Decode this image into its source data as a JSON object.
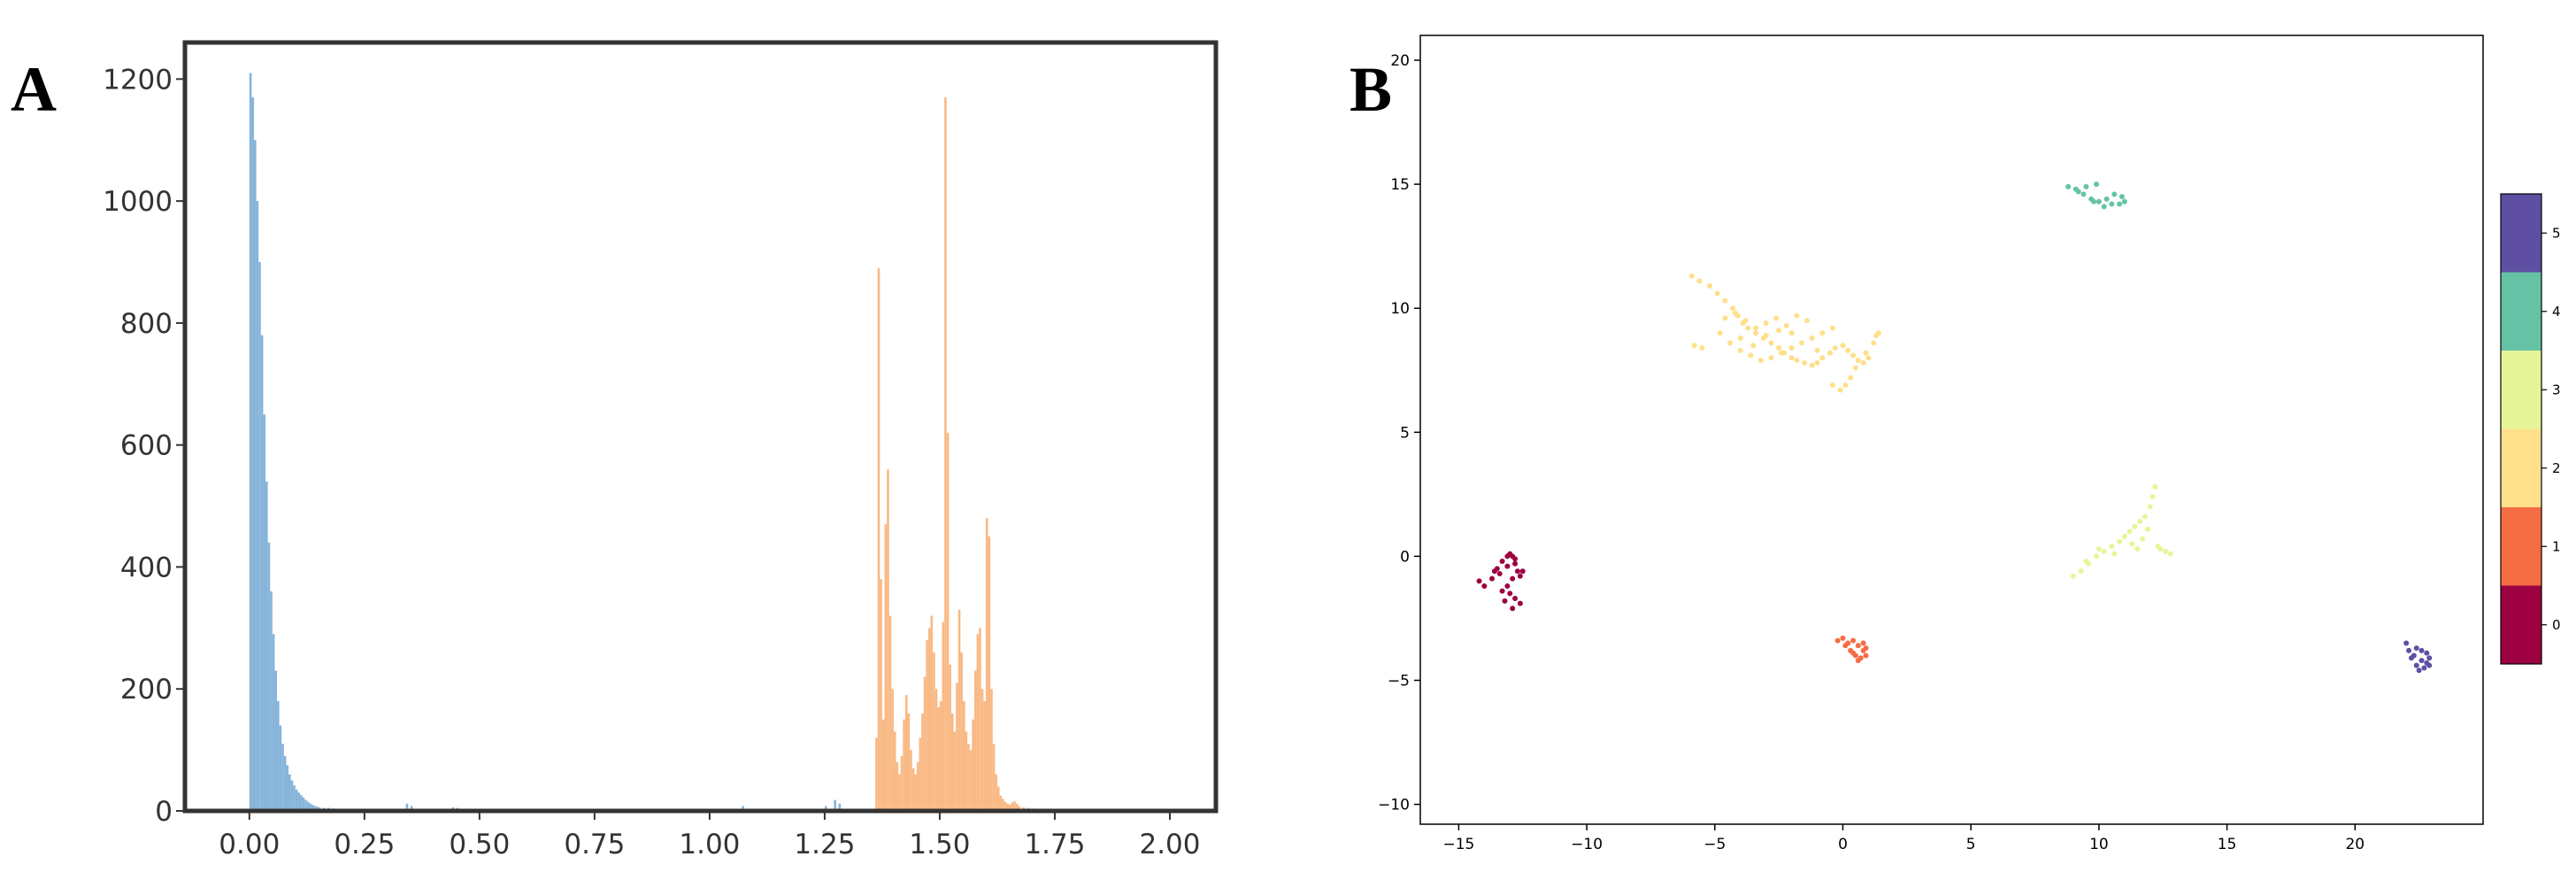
{
  "panel_labels": {
    "a": "A",
    "b": "B"
  },
  "chart_data": [
    {
      "id": "A",
      "type": "bar",
      "xlim": [
        -0.14,
        2.1
      ],
      "ylim": [
        0,
        1260
      ],
      "xticks": [
        0.0,
        0.25,
        0.5,
        0.75,
        1.0,
        1.25,
        1.5,
        1.75,
        2.0
      ],
      "xtick_labels": [
        "0.00",
        "0.25",
        "0.50",
        "0.75",
        "1.00",
        "1.25",
        "1.50",
        "1.75",
        "2.00"
      ],
      "yticks": [
        0,
        200,
        400,
        600,
        800,
        1000,
        1200
      ],
      "ytick_labels": [
        "0",
        "200",
        "400",
        "600",
        "800",
        "1000",
        "1200"
      ],
      "grid": false,
      "series": [
        {
          "color": "#7fb0d8",
          "bin_width": 0.005,
          "x": [
            0.0,
            0.005,
            0.01,
            0.015,
            0.02,
            0.025,
            0.03,
            0.035,
            0.04,
            0.045,
            0.05,
            0.055,
            0.06,
            0.065,
            0.07,
            0.075,
            0.08,
            0.085,
            0.09,
            0.095,
            0.1,
            0.105,
            0.11,
            0.115,
            0.12,
            0.125,
            0.13,
            0.135,
            0.14,
            0.145,
            0.15,
            0.16,
            0.17,
            0.18,
            0.2,
            0.34,
            0.35,
            0.44,
            0.45,
            0.55,
            0.65,
            1.07,
            1.25,
            1.27,
            1.28
          ],
          "values": [
            1210,
            1170,
            1100,
            1000,
            900,
            780,
            650,
            540,
            440,
            360,
            290,
            230,
            180,
            140,
            110,
            90,
            75,
            60,
            50,
            42,
            35,
            30,
            26,
            22,
            18,
            15,
            12,
            10,
            8,
            7,
            6,
            5,
            5,
            4,
            3,
            12,
            8,
            6,
            5,
            3,
            3,
            8,
            8,
            18,
            12
          ]
        },
        {
          "color": "#f9b57e",
          "bin_width": 0.005,
          "x": [
            1.36,
            1.365,
            1.37,
            1.375,
            1.38,
            1.385,
            1.39,
            1.395,
            1.4,
            1.405,
            1.41,
            1.415,
            1.42,
            1.425,
            1.43,
            1.435,
            1.44,
            1.445,
            1.45,
            1.455,
            1.46,
            1.465,
            1.47,
            1.475,
            1.48,
            1.485,
            1.49,
            1.495,
            1.5,
            1.505,
            1.51,
            1.515,
            1.52,
            1.525,
            1.53,
            1.535,
            1.54,
            1.545,
            1.55,
            1.555,
            1.56,
            1.565,
            1.57,
            1.575,
            1.58,
            1.585,
            1.59,
            1.595,
            1.6,
            1.605,
            1.61,
            1.615,
            1.62,
            1.625,
            1.63,
            1.635,
            1.64,
            1.645,
            1.65,
            1.655,
            1.66,
            1.665,
            1.67,
            1.68,
            1.69,
            1.7,
            1.71,
            1.72,
            1.73,
            1.74,
            1.75
          ],
          "values": [
            120,
            890,
            380,
            150,
            470,
            560,
            320,
            200,
            130,
            80,
            60,
            90,
            150,
            190,
            160,
            100,
            70,
            60,
            80,
            120,
            160,
            220,
            280,
            300,
            320,
            260,
            200,
            170,
            180,
            310,
            1170,
            620,
            240,
            160,
            130,
            210,
            330,
            260,
            180,
            130,
            110,
            100,
            150,
            230,
            290,
            300,
            200,
            180,
            480,
            450,
            200,
            110,
            60,
            40,
            25,
            20,
            15,
            12,
            10,
            14,
            16,
            12,
            8,
            6,
            5,
            4,
            3,
            3,
            2,
            2,
            2
          ]
        }
      ]
    },
    {
      "id": "B",
      "type": "scatter",
      "xlim": [
        -16.5,
        25.0
      ],
      "ylim": [
        -10.8,
        21.0
      ],
      "xticks": [
        -15,
        -10,
        -5,
        0,
        5,
        10,
        15,
        20
      ],
      "xtick_labels": [
        "−15",
        "−10",
        "−5",
        "0",
        "5",
        "10",
        "15",
        "20"
      ],
      "yticks": [
        -10,
        -5,
        0,
        5,
        10,
        15,
        20
      ],
      "ytick_labels": [
        "−10",
        "−5",
        "0",
        "5",
        "10",
        "15",
        "20"
      ],
      "grid": false,
      "colorbar": {
        "labels": [
          "0",
          "1",
          "2",
          "3",
          "4",
          "5"
        ],
        "colors": [
          "#9e0142",
          "#f46d43",
          "#fee08b",
          "#e6f598",
          "#66c2a5",
          "#5e4fa2"
        ]
      },
      "series": [
        {
          "label": "0",
          "color": "#9e0142",
          "x": [
            -14.2,
            -14.0,
            -13.7,
            -13.5,
            -13.3,
            -13.1,
            -12.9,
            -12.8,
            -12.7,
            -12.9,
            -13.1,
            -13.0,
            -12.8,
            -12.6,
            -12.9,
            -13.2,
            -13.4,
            -13.1,
            -13.0,
            -12.8,
            -12.6,
            -12.5,
            -13.3,
            -13.6
          ],
          "y": [
            -1.0,
            -1.2,
            -0.9,
            -0.5,
            -0.2,
            0.0,
            0.0,
            -0.3,
            -0.6,
            -0.9,
            -1.2,
            -1.5,
            -1.7,
            -1.9,
            -2.1,
            -1.8,
            -0.7,
            -0.4,
            0.1,
            -0.1,
            -0.8,
            -0.6,
            -1.4,
            -0.6
          ]
        },
        {
          "label": "1",
          "color": "#f46d43",
          "x": [
            -0.2,
            0.0,
            0.2,
            0.4,
            0.6,
            0.8,
            0.9,
            0.7,
            0.5,
            0.3,
            0.1,
            0.8,
            0.9,
            0.6,
            0.4
          ],
          "y": [
            -3.4,
            -3.3,
            -3.5,
            -3.4,
            -3.6,
            -3.8,
            -4.0,
            -4.1,
            -4.0,
            -3.8,
            -3.6,
            -3.5,
            -3.7,
            -4.2,
            -3.9
          ]
        },
        {
          "label": "2",
          "color": "#fee08b",
          "x": [
            -5.9,
            -5.6,
            -5.2,
            -4.9,
            -4.6,
            -4.3,
            -4.1,
            -3.9,
            -3.7,
            -3.4,
            -3.1,
            -2.8,
            -2.5,
            -2.3,
            -2.0,
            -1.8,
            -1.5,
            -1.2,
            -1.0,
            -0.8,
            -0.5,
            -0.3,
            0.0,
            0.2,
            0.4,
            0.6,
            0.8,
            1.0,
            1.2,
            1.4,
            0.3,
            0.1,
            -0.1,
            -0.4,
            -4.8,
            -4.4,
            -4.0,
            -3.6,
            -3.2,
            -2.8,
            -2.4,
            -2.0,
            -1.6,
            -1.2,
            -0.8,
            -0.4,
            -4.6,
            -4.2,
            -3.8,
            -3.4,
            -3.0,
            -2.6,
            -2.2,
            -1.8,
            -1.4,
            -4.0,
            -3.5,
            -3.0,
            -2.5,
            -2.0,
            -5.8,
            -5.5,
            -1.0,
            0.5,
            0.9,
            1.3
          ],
          "y": [
            11.3,
            11.1,
            10.9,
            10.6,
            10.3,
            10.0,
            9.7,
            9.4,
            9.2,
            9.0,
            8.8,
            8.6,
            8.4,
            8.2,
            8.0,
            7.9,
            7.8,
            7.7,
            7.8,
            8.0,
            8.2,
            8.4,
            8.5,
            8.3,
            8.1,
            7.9,
            7.8,
            8.0,
            8.6,
            9.0,
            7.2,
            6.9,
            6.7,
            6.9,
            9.0,
            8.6,
            8.3,
            8.1,
            7.9,
            8.0,
            8.2,
            8.4,
            8.6,
            8.8,
            9.0,
            9.2,
            9.6,
            9.8,
            9.5,
            9.2,
            9.4,
            9.6,
            9.3,
            9.7,
            9.5,
            8.8,
            8.5,
            8.9,
            9.1,
            9.0,
            8.5,
            8.4,
            8.3,
            7.6,
            8.2,
            8.9
          ]
        },
        {
          "label": "3",
          "color": "#e6f598",
          "x": [
            9.0,
            9.3,
            9.6,
            9.9,
            10.2,
            10.5,
            10.8,
            11.0,
            11.2,
            11.4,
            11.6,
            11.8,
            12.0,
            12.1,
            12.2,
            12.4,
            12.6,
            12.8,
            11.5,
            11.3,
            10.6,
            10.0,
            9.5,
            12.3,
            11.9,
            11.7
          ],
          "y": [
            -0.8,
            -0.6,
            -0.3,
            0.0,
            0.2,
            0.4,
            0.6,
            0.8,
            1.0,
            1.2,
            1.4,
            1.6,
            2.0,
            2.4,
            2.8,
            0.3,
            0.2,
            0.1,
            0.3,
            0.5,
            0.1,
            0.3,
            -0.2,
            0.4,
            1.1,
            0.7
          ]
        },
        {
          "label": "4",
          "color": "#66c2a5",
          "x": [
            8.8,
            9.1,
            9.4,
            9.7,
            10.0,
            10.3,
            10.6,
            10.9,
            11.0,
            10.8,
            10.5,
            10.2,
            9.8,
            9.5,
            9.2,
            9.9
          ],
          "y": [
            14.9,
            14.8,
            14.6,
            14.4,
            14.3,
            14.4,
            14.6,
            14.5,
            14.3,
            14.2,
            14.2,
            14.1,
            14.3,
            14.9,
            14.7,
            15.0
          ]
        },
        {
          "label": "5",
          "color": "#5e4fa2",
          "x": [
            22.0,
            22.1,
            22.2,
            22.4,
            22.5,
            22.7,
            22.8,
            22.9,
            22.8,
            22.6,
            22.4,
            22.3,
            22.6,
            22.9
          ],
          "y": [
            -3.5,
            -3.8,
            -4.1,
            -4.4,
            -4.6,
            -4.5,
            -4.3,
            -4.1,
            -3.9,
            -3.8,
            -3.7,
            -4.0,
            -4.2,
            -4.4
          ]
        }
      ]
    }
  ]
}
